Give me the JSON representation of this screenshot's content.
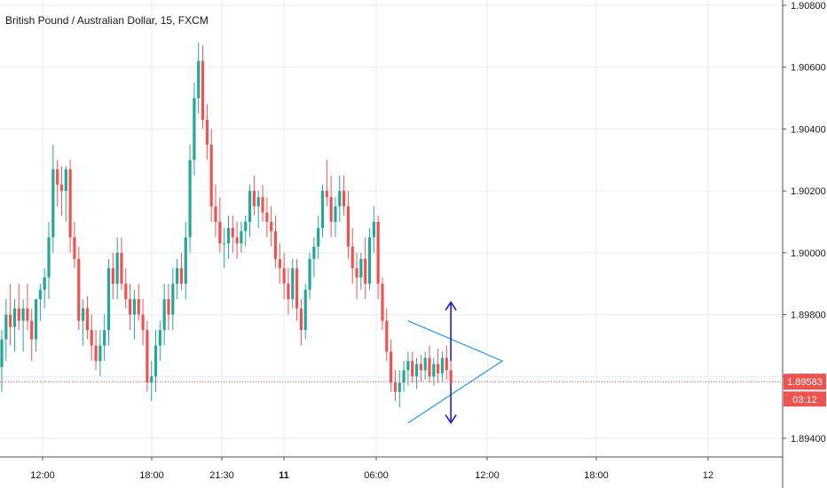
{
  "title": "British Pound / Australian Dollar, 15, FXCM",
  "colors": {
    "up": "#26a69a",
    "down": "#ef5350",
    "grid": "#e8ebf2",
    "axis": "#50535e",
    "triangle": "#2196f3",
    "arrows": "#1e1ecc",
    "price_line": "#ef5350"
  },
  "chart_data": {
    "type": "candlestick",
    "title": "British Pound / Australian Dollar, 15, FXCM",
    "y_ticks": [
      "1.90800",
      "1.90600",
      "1.90400",
      "1.90200",
      "1.90000",
      "1.89800",
      "1.89600",
      "1.89400"
    ],
    "x_ticks": [
      {
        "label": "12:00",
        "bold": false
      },
      {
        "label": "18:00",
        "bold": false
      },
      {
        "label": "21:30",
        "bold": false
      },
      {
        "label": "11",
        "bold": true
      },
      {
        "label": "06:00",
        "bold": false
      },
      {
        "label": "12:00",
        "bold": false
      },
      {
        "label": "18:00",
        "bold": false
      },
      {
        "label": "12",
        "bold": false
      }
    ],
    "ylim": [
      1.8933,
      1.9087
    ],
    "grid": true,
    "last_price": "1.89583",
    "countdown": "03:12",
    "candles": [
      [
        1.8963,
        1.8975,
        1.8955,
        1.8972
      ],
      [
        1.8972,
        1.8985,
        1.8965,
        1.898
      ],
      [
        1.898,
        1.899,
        1.897,
        1.8976
      ],
      [
        1.8976,
        1.8985,
        1.8968,
        1.8982
      ],
      [
        1.8982,
        1.899,
        1.8975,
        1.8978
      ],
      [
        1.8978,
        1.8985,
        1.8968,
        1.8982
      ],
      [
        1.8982,
        1.899,
        1.8975,
        1.8978
      ],
      [
        1.8978,
        1.8982,
        1.8965,
        1.8972
      ],
      [
        1.8972,
        1.8985,
        1.8968,
        1.8985
      ],
      [
        1.8985,
        1.899,
        1.8978,
        1.8988
      ],
      [
        1.8988,
        1.8995,
        1.8982,
        1.8992
      ],
      [
        1.8992,
        1.901,
        1.8985,
        1.9005
      ],
      [
        1.9005,
        1.9035,
        1.9,
        1.9027
      ],
      [
        1.9027,
        1.903,
        1.9015,
        1.9022
      ],
      [
        1.9022,
        1.9028,
        1.9012,
        1.902
      ],
      [
        1.902,
        1.9028,
        1.901,
        1.9027
      ],
      [
        1.9027,
        1.903,
        1.9,
        1.9005
      ],
      [
        1.9005,
        1.901,
        1.8995,
        1.8998
      ],
      [
        1.8998,
        1.9002,
        1.8975,
        1.8978
      ],
      [
        1.8978,
        1.8985,
        1.897,
        1.8982
      ],
      [
        1.8982,
        1.8986,
        1.8972,
        1.8975
      ],
      [
        1.8975,
        1.898,
        1.8965,
        1.897
      ],
      [
        1.897,
        1.8975,
        1.8962,
        1.8965
      ],
      [
        1.8965,
        1.8975,
        1.896,
        1.897
      ],
      [
        1.897,
        1.898,
        1.8965,
        1.8975
      ],
      [
        1.8975,
        1.8998,
        1.897,
        1.8995
      ],
      [
        1.8995,
        1.9,
        1.8985,
        1.899
      ],
      [
        1.899,
        1.9005,
        1.8985,
        1.9
      ],
      [
        1.9,
        1.9005,
        1.8988,
        1.899
      ],
      [
        1.899,
        1.8995,
        1.8982,
        1.8985
      ],
      [
        1.8985,
        1.899,
        1.8975,
        1.898
      ],
      [
        1.898,
        1.8988,
        1.8972,
        1.8985
      ],
      [
        1.8985,
        1.899,
        1.8978,
        1.898
      ],
      [
        1.898,
        1.8985,
        1.897,
        1.8975
      ],
      [
        1.8975,
        1.8978,
        1.8955,
        1.8958
      ],
      [
        1.8958,
        1.8965,
        1.8952,
        1.896
      ],
      [
        1.896,
        1.8975,
        1.8955,
        1.897
      ],
      [
        1.897,
        1.8978,
        1.8965,
        1.8975
      ],
      [
        1.8975,
        1.899,
        1.897,
        1.8985
      ],
      [
        1.8985,
        1.899,
        1.8975,
        1.898
      ],
      [
        1.898,
        1.8995,
        1.8975,
        1.899
      ],
      [
        1.899,
        1.8998,
        1.8985,
        1.8995
      ],
      [
        1.8995,
        1.9,
        1.8988,
        1.899
      ],
      [
        1.899,
        1.901,
        1.8985,
        1.9005
      ],
      [
        1.9005,
        1.9035,
        1.9,
        1.903
      ],
      [
        1.903,
        1.9055,
        1.9025,
        1.905
      ],
      [
        1.905,
        1.9068,
        1.9045,
        1.9062
      ],
      [
        1.9062,
        1.9067,
        1.904,
        1.9043
      ],
      [
        1.9043,
        1.9048,
        1.903,
        1.9035
      ],
      [
        1.9035,
        1.904,
        1.901,
        1.9015
      ],
      [
        1.9015,
        1.9022,
        1.9005,
        1.901
      ],
      [
        1.901,
        1.9018,
        1.9,
        1.9003
      ],
      [
        1.9003,
        1.9008,
        1.8995,
        1.9003
      ],
      [
        1.9003,
        1.9012,
        1.8998,
        1.9008
      ],
      [
        1.9008,
        1.9012,
        1.9,
        1.9005
      ],
      [
        1.9005,
        1.901,
        1.8998,
        1.9003
      ],
      [
        1.9003,
        1.901,
        1.9,
        1.9007
      ],
      [
        1.9007,
        1.9012,
        1.9002,
        1.901
      ],
      [
        1.901,
        1.9022,
        1.9005,
        1.902
      ],
      [
        1.902,
        1.9025,
        1.9012,
        1.9015
      ],
      [
        1.9015,
        1.902,
        1.9008,
        1.9018
      ],
      [
        1.9018,
        1.9022,
        1.901,
        1.9013
      ],
      [
        1.9013,
        1.9018,
        1.9005,
        1.901
      ],
      [
        1.901,
        1.9015,
        1.9002,
        1.9007
      ],
      [
        1.9007,
        1.9012,
        1.8995,
        1.8998
      ],
      [
        1.8998,
        1.9003,
        1.899,
        1.8995
      ],
      [
        1.8995,
        1.9,
        1.8985,
        1.899
      ],
      [
        1.899,
        1.8995,
        1.898,
        1.8985
      ],
      [
        1.8985,
        1.8998,
        1.8982,
        1.8995
      ],
      [
        1.8995,
        1.8998,
        1.8978,
        1.8982
      ],
      [
        1.8982,
        1.8985,
        1.897,
        1.8975
      ],
      [
        1.8975,
        1.899,
        1.8972,
        1.8988
      ],
      [
        1.8988,
        1.9,
        1.8985,
        1.8998
      ],
      [
        1.8998,
        1.9005,
        1.8992,
        1.9002
      ],
      [
        1.9002,
        1.9012,
        1.8998,
        1.9008
      ],
      [
        1.9008,
        1.9022,
        1.9005,
        1.902
      ],
      [
        1.902,
        1.903,
        1.9015,
        1.9018
      ],
      [
        1.9018,
        1.9025,
        1.9005,
        1.901
      ],
      [
        1.901,
        1.9018,
        1.9005,
        1.9015
      ],
      [
        1.9015,
        1.9025,
        1.901,
        1.902
      ],
      [
        1.902,
        1.9025,
        1.9012,
        1.9015
      ],
      [
        1.9015,
        1.902,
        1.8998,
        1.9002
      ],
      [
        1.9002,
        1.9008,
        1.899,
        1.8995
      ],
      [
        1.8995,
        1.9,
        1.8985,
        1.8992
      ],
      [
        1.8992,
        1.9,
        1.8988,
        1.8998
      ],
      [
        1.8998,
        1.9005,
        1.8985,
        1.899
      ],
      [
        1.899,
        1.9008,
        1.8988,
        1.9005
      ],
      [
        1.9005,
        1.9015,
        1.9,
        1.901
      ],
      [
        1.901,
        1.9012,
        1.8985,
        1.899
      ],
      [
        1.899,
        1.8992,
        1.8975,
        1.8978
      ],
      [
        1.8978,
        1.8982,
        1.8965,
        1.8968
      ],
      [
        1.8968,
        1.8972,
        1.8955,
        1.8958
      ],
      [
        1.8958,
        1.8962,
        1.8952,
        1.8955
      ],
      [
        1.8955,
        1.8962,
        1.895,
        1.8958
      ],
      [
        1.8958,
        1.8965,
        1.8955,
        1.8962
      ],
      [
        1.8962,
        1.8968,
        1.8957,
        1.8965
      ],
      [
        1.8965,
        1.8968,
        1.8958,
        1.896
      ],
      [
        1.896,
        1.8966,
        1.8956,
        1.8964
      ],
      [
        1.8964,
        1.8967,
        1.8958,
        1.8962
      ],
      [
        1.8962,
        1.8968,
        1.8959,
        1.8966
      ],
      [
        1.8966,
        1.897,
        1.8958,
        1.896
      ],
      [
        1.896,
        1.8966,
        1.8957,
        1.8964
      ],
      [
        1.8964,
        1.8969,
        1.8958,
        1.8961
      ],
      [
        1.8961,
        1.8968,
        1.8958,
        1.8966
      ],
      [
        1.8966,
        1.897,
        1.8959,
        1.8962
      ],
      [
        1.8962,
        1.8965,
        1.8957,
        1.8958
      ]
    ],
    "annotations": {
      "triangle": {
        "start_index": 95,
        "start_upper": 1.8978,
        "start_lower": 1.8945,
        "apex_index": 117,
        "apex_price": 1.8965
      },
      "arrows": [
        {
          "index": 105,
          "from": 1.8965,
          "to": 1.8984,
          "direction": "up"
        },
        {
          "index": 105,
          "from": 1.8958,
          "to": 1.8945,
          "direction": "down"
        }
      ]
    }
  }
}
